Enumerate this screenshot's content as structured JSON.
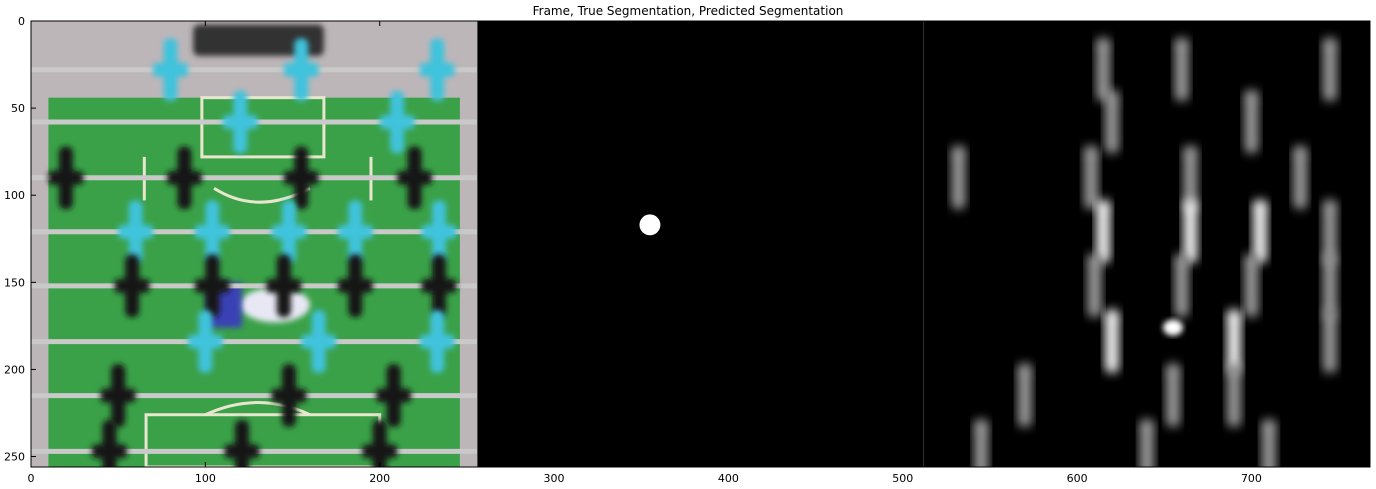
{
  "chart_data": {
    "type": "heatmap",
    "title": "Frame, True Segmentation, Predicted Segmentation",
    "xlabel": "",
    "ylabel": "",
    "xlim": [
      0,
      768
    ],
    "ylim": [
      256,
      0
    ],
    "x_ticks": [
      0,
      100,
      200,
      300,
      400,
      500,
      600,
      700
    ],
    "y_ticks": [
      0,
      50,
      100,
      150,
      200,
      250
    ],
    "panels": [
      {
        "name": "Frame",
        "x_range": [
          0,
          256
        ],
        "content": "foosball table camera frame"
      },
      {
        "name": "True Segmentation",
        "x_range": [
          256,
          512
        ],
        "ball_center": [
          355,
          117
        ],
        "ball_radius": 6
      },
      {
        "name": "Predicted Segmentation",
        "x_range": [
          512,
          768
        ],
        "content": "grayscale probability map"
      }
    ],
    "rods_y": [
      28,
      58,
      90,
      121,
      152,
      184,
      215,
      247
    ],
    "colors": {
      "field_green": "#3aa148",
      "blue_players": "#3fc3dc",
      "black_players": "#141414",
      "rod": "#c9c9c9",
      "segmentation_background": "#000000",
      "mask": "#ffffff"
    }
  }
}
